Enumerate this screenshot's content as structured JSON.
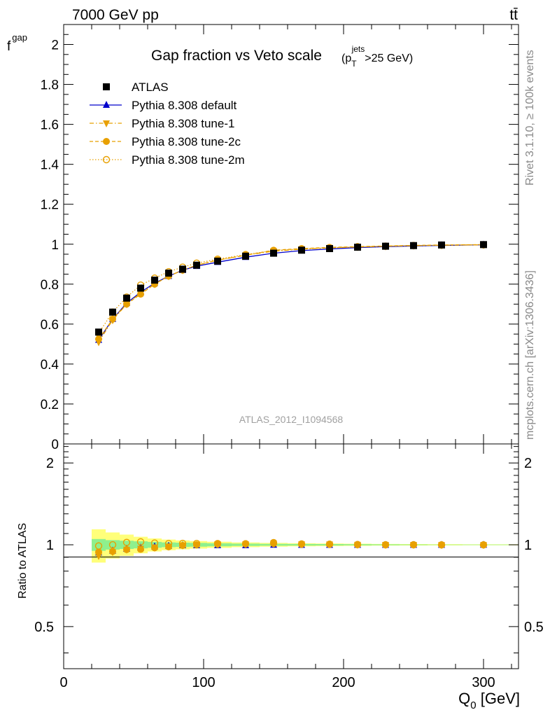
{
  "header": {
    "energy_label": "7000 GeV pp",
    "process_label": "tt̄"
  },
  "side_labels": {
    "rivet": "Rivet 3.1.10, ≥ 100k events",
    "mcplots": "mcplots.cern.ch [arXiv:1306.3436]"
  },
  "chart_data": [
    {
      "type": "line",
      "title": "Gap fraction vs Veto scale",
      "title_cut": {
        "base": "(p",
        "sub": "T",
        "sup": "jets",
        "rest": ">25 GeV)"
      },
      "xlabel": {
        "base": "Q",
        "sub": "0",
        "rest": " [GeV]"
      },
      "ylabel": {
        "base": "f",
        "sub": "gap"
      },
      "watermark": "ATLAS_2012_I1094568",
      "xlim": [
        0,
        325
      ],
      "ylim": [
        0,
        2.1
      ],
      "x_ticks": [
        "0",
        "100",
        "200",
        "300"
      ],
      "y_ticks": [
        "0",
        "0.2",
        "0.4",
        "0.6",
        "0.8",
        "1",
        "1.2",
        "1.4",
        "1.6",
        "1.8",
        "2"
      ],
      "legend_position": "top-left",
      "x": [
        25,
        35,
        45,
        55,
        65,
        75,
        85,
        95,
        110,
        130,
        150,
        170,
        190,
        210,
        230,
        250,
        270,
        300
      ],
      "series": [
        {
          "name": "ATLAS",
          "color": "#000000",
          "marker": "square",
          "values": [
            0.56,
            0.66,
            0.73,
            0.78,
            0.82,
            0.855,
            0.875,
            0.895,
            0.915,
            0.94,
            0.955,
            0.97,
            0.978,
            0.985,
            0.99,
            0.993,
            0.996,
            0.998
          ]
        },
        {
          "name": "Pythia 8.308 default",
          "color": "#0000cc",
          "marker": "triangle-up",
          "line": "solid",
          "values": [
            0.52,
            0.625,
            0.705,
            0.76,
            0.805,
            0.84,
            0.87,
            0.89,
            0.91,
            0.935,
            0.955,
            0.968,
            0.976,
            0.983,
            0.988,
            0.991,
            0.994,
            0.997
          ]
        },
        {
          "name": "Pythia 8.308 tune-1",
          "color": "#e8a000",
          "marker": "triangle-down",
          "line": "dashdot",
          "values": [
            0.51,
            0.62,
            0.7,
            0.755,
            0.8,
            0.84,
            0.87,
            0.895,
            0.92,
            0.945,
            0.965,
            0.975,
            0.982,
            0.986,
            0.99,
            0.993,
            0.995,
            0.997
          ]
        },
        {
          "name": "Pythia 8.308 tune-2c",
          "color": "#e8a000",
          "marker": "circle",
          "line": "dashed",
          "values": [
            0.525,
            0.625,
            0.7,
            0.75,
            0.8,
            0.84,
            0.87,
            0.895,
            0.92,
            0.945,
            0.97,
            0.978,
            0.984,
            0.988,
            0.991,
            0.994,
            0.996,
            0.998
          ]
        },
        {
          "name": "Pythia 8.308 tune-2m",
          "color": "#e8a000",
          "marker": "circle-open",
          "line": "dotted",
          "values": [
            0.555,
            0.66,
            0.735,
            0.795,
            0.83,
            0.862,
            0.885,
            0.905,
            0.925,
            0.948,
            0.968,
            0.976,
            0.982,
            0.986,
            0.99,
            0.993,
            0.995,
            0.997
          ]
        }
      ]
    },
    {
      "type": "line",
      "ylabel": "Ratio to ATLAS",
      "xlim": [
        0,
        325
      ],
      "ylim": [
        0.35,
        2.35
      ],
      "y_ticks": [
        "0.5",
        "1",
        "2"
      ],
      "x": [
        25,
        35,
        45,
        55,
        65,
        75,
        85,
        95,
        110,
        130,
        150,
        170,
        190,
        210,
        230,
        250,
        270,
        300
      ],
      "band_green": [
        0.05,
        0.04,
        0.035,
        0.03,
        0.025,
        0.02,
        0.018,
        0.016,
        0.013,
        0.01,
        0.008,
        0.007,
        0.006,
        0.005,
        0.004,
        0.003,
        0.002,
        0.002
      ],
      "band_yellow": [
        0.14,
        0.11,
        0.09,
        0.07,
        0.055,
        0.045,
        0.038,
        0.032,
        0.026,
        0.02,
        0.016,
        0.013,
        0.011,
        0.009,
        0.007,
        0.006,
        0.005,
        0.004
      ],
      "series": [
        {
          "name": "Pythia 8.308 default",
          "color": "#0000cc",
          "marker": "triangle-up",
          "values": [
            0.935,
            0.95,
            0.965,
            0.975,
            0.985,
            0.99,
            0.994,
            0.995,
            0.995,
            0.995,
            0.999,
            0.998,
            0.998,
            0.998,
            0.998,
            0.998,
            0.998,
            0.999
          ]
        },
        {
          "name": "Pythia 8.308 tune-1",
          "color": "#e8a000",
          "marker": "triangle-down",
          "values": [
            0.91,
            0.94,
            0.96,
            0.968,
            0.976,
            0.985,
            0.995,
            1.0,
            1.005,
            1.005,
            1.01,
            1.005,
            1.004,
            1.001,
            1.0,
            1.0,
            0.999,
            0.999
          ]
        },
        {
          "name": "Pythia 8.308 tune-2c",
          "color": "#e8a000",
          "marker": "circle",
          "values": [
            0.94,
            0.945,
            0.96,
            0.962,
            0.975,
            0.983,
            0.994,
            1.0,
            1.005,
            1.01,
            1.02,
            1.008,
            1.006,
            1.003,
            1.001,
            1.001,
            1.0,
            1.0
          ]
        },
        {
          "name": "Pythia 8.308 tune-2m",
          "color": "#e8a000",
          "marker": "circle-open",
          "values": [
            0.99,
            1.0,
            1.02,
            1.025,
            1.015,
            1.01,
            1.012,
            1.011,
            1.01,
            1.008,
            1.012,
            1.006,
            1.004,
            1.001,
            1.0,
            1.0,
            0.999,
            0.999
          ]
        }
      ]
    }
  ]
}
